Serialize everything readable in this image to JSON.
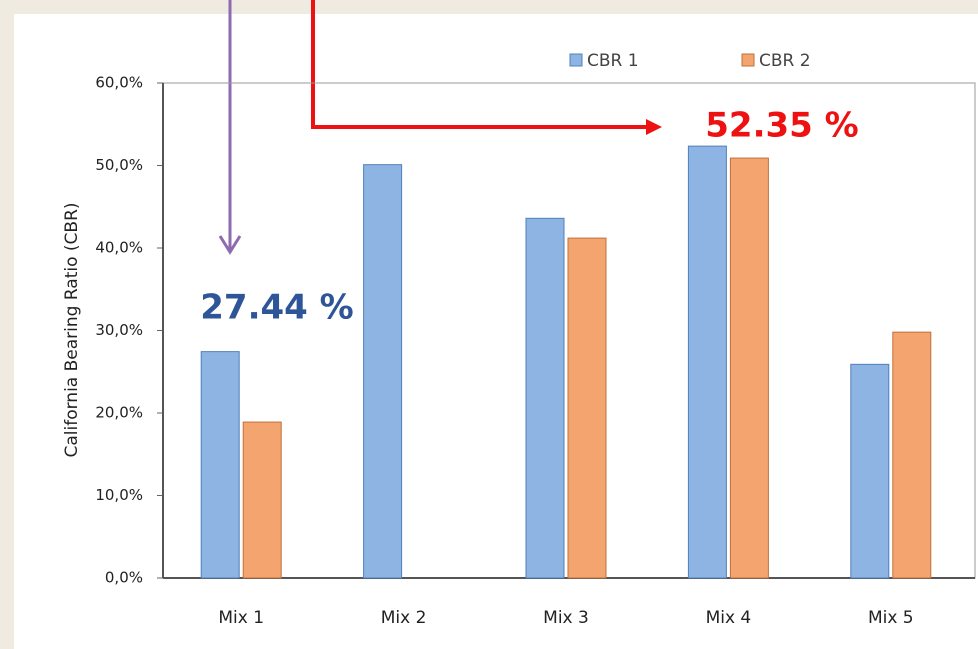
{
  "chart_data": {
    "type": "bar",
    "y_label": "California  Bearing  Ratio  (CBR)",
    "categories": [
      "Mix 1",
      "Mix 2",
      "Mix 3",
      "Mix 4",
      "Mix 5"
    ],
    "series": [
      {
        "name": "CBR 1",
        "color": "#8db4e2",
        "values": [
          27.44,
          50.1,
          43.6,
          52.35,
          25.9
        ]
      },
      {
        "name": "CBR 2",
        "color": "#f4a46e",
        "values": [
          18.9,
          null,
          41.2,
          50.9,
          29.8
        ]
      }
    ],
    "ylim": [
      0,
      60
    ],
    "yticks": [
      {
        "value": 0,
        "label": "0,0%"
      },
      {
        "value": 10,
        "label": "10,0%"
      },
      {
        "value": 20,
        "label": "20,0%"
      },
      {
        "value": 30,
        "label": "30,0%"
      },
      {
        "value": 40,
        "label": "40,0%"
      },
      {
        "value": 50,
        "label": "50,0%"
      },
      {
        "value": 60,
        "label": "60,0%"
      }
    ],
    "annotations": [
      "27.44 %",
      "52.35 %"
    ],
    "legend": "top-right"
  }
}
